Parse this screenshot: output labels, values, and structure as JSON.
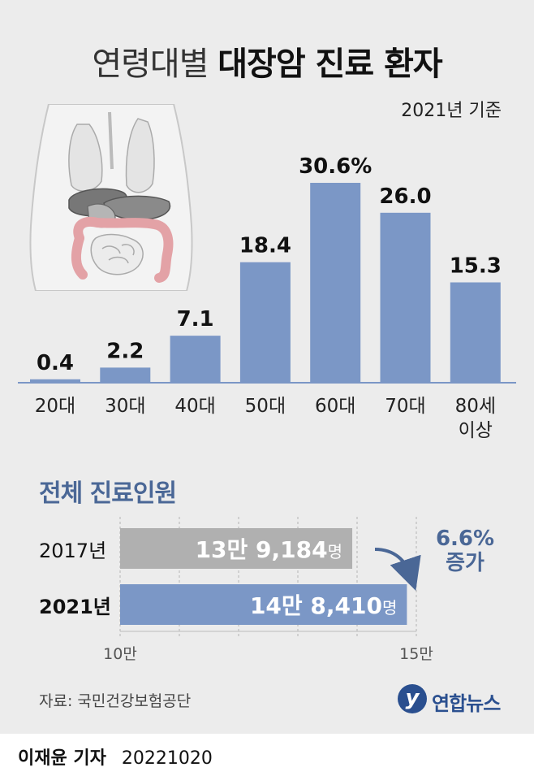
{
  "title_light": "연령대별",
  "title_bold": "대장암 진료 환자",
  "basis": "2021년 기준",
  "illustration": "torso-organs-colon-icon",
  "chart_data": [
    {
      "type": "bar",
      "categories": [
        "20대",
        "30대",
        "40대",
        "50대",
        "60대",
        "70대",
        "80세\n이상"
      ],
      "values": [
        0.4,
        2.2,
        7.1,
        18.4,
        30.6,
        26.0,
        15.3
      ],
      "value_labels": [
        "0.4",
        "2.2",
        "7.1",
        "18.4",
        "30.6%",
        "26.0",
        "15.3"
      ],
      "unit": "%",
      "title": "연령대별 대장암 진료 환자",
      "subtitle": "2021년 기준",
      "ylim": [
        0,
        30.6
      ],
      "grid": false,
      "bar_color": "#7b97c6"
    },
    {
      "type": "bar",
      "orientation": "horizontal",
      "title": "전체 진료인원",
      "categories": [
        "2017년",
        "2021년"
      ],
      "values": [
        139184,
        148410
      ],
      "value_labels": [
        "13만 9,184명",
        "14만 8,410명"
      ],
      "xlim": [
        100000,
        150000
      ],
      "x_tick_labels": [
        "10만",
        "15만"
      ],
      "colors": [
        "#b0b0b0",
        "#7b97c6"
      ],
      "annotation": "6.6%\n증가"
    }
  ],
  "source": "자료: 국민건강보험공단",
  "logo": {
    "mark": "y",
    "text": "연합뉴스"
  },
  "byline": {
    "name": "이재윤 기자",
    "date": "20221020"
  },
  "colors": {
    "accent": "#4a6796",
    "bar": "#7b97c6",
    "bar_grey": "#b0b0b0",
    "panel": "#ececec"
  }
}
